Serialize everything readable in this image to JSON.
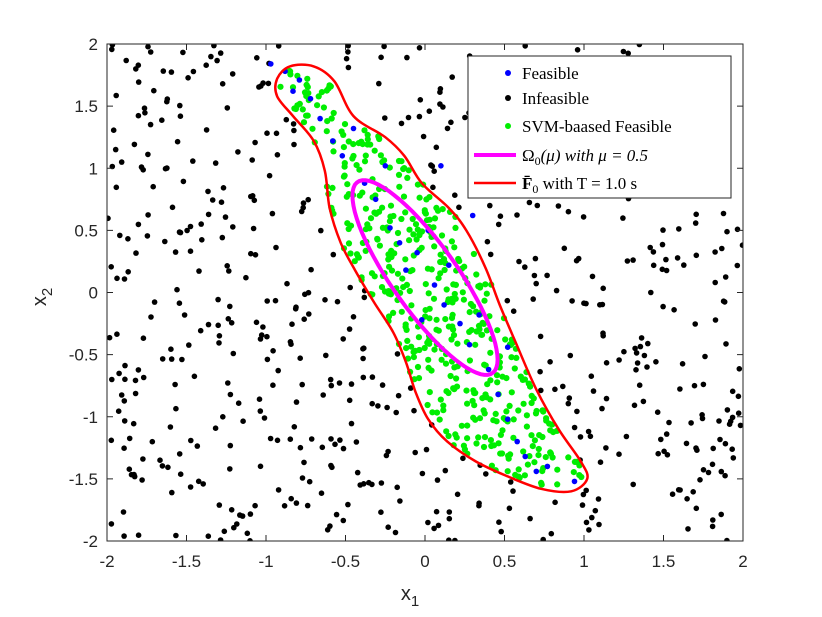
{
  "chart_data": {
    "type": "scatter",
    "title": "",
    "xlabel": "x",
    "xlabel_sub": "1",
    "ylabel": "x",
    "ylabel_sub": "2",
    "xlim": [
      -2,
      2
    ],
    "ylim": [
      -2,
      2
    ],
    "xticks": [
      "-2",
      "-1.5",
      "-1",
      "-0.5",
      "0",
      "0.5",
      "1",
      "1.5",
      "2"
    ],
    "yticks": [
      "-2",
      "-1.5",
      "-1",
      "-0.5",
      "0",
      "0.5",
      "1",
      "1.5",
      "2"
    ],
    "grid": false,
    "legend_position": "top-right",
    "series": [
      {
        "name": "Feasible",
        "kind": "points",
        "color": "#0000ff",
        "points": [
          [
            -0.97,
            1.84
          ],
          [
            -0.88,
            1.78
          ],
          [
            -0.83,
            1.62
          ],
          [
            -0.79,
            1.71
          ],
          [
            -0.72,
            1.56
          ],
          [
            -0.66,
            1.4
          ],
          [
            -0.58,
            1.22
          ],
          [
            -0.52,
            1.1
          ],
          [
            -0.45,
            1.32
          ],
          [
            -0.38,
            0.88
          ],
          [
            -0.31,
            0.75
          ],
          [
            -0.22,
            0.52
          ],
          [
            -0.16,
            0.4
          ],
          [
            -0.12,
            0.18
          ],
          [
            -0.05,
            0.32
          ],
          [
            0.02,
            0.5
          ],
          [
            0.06,
            0.06
          ],
          [
            0.12,
            -0.1
          ],
          [
            0.15,
            0.22
          ],
          [
            0.22,
            -0.25
          ],
          [
            0.28,
            -0.42
          ],
          [
            0.34,
            -0.18
          ],
          [
            0.4,
            -0.62
          ],
          [
            0.46,
            -0.82
          ],
          [
            0.52,
            -1.02
          ],
          [
            0.58,
            -1.2
          ],
          [
            0.63,
            -1.32
          ],
          [
            0.7,
            -1.44
          ],
          [
            0.77,
            -1.4
          ],
          [
            0.94,
            -1.52
          ],
          [
            -0.02,
            -0.22
          ],
          [
            0.3,
            0.62
          ],
          [
            0.1,
            1.02
          ],
          [
            -0.25,
            1.02
          ],
          [
            0.52,
            -0.44
          ]
        ]
      },
      {
        "name": "Infeasible",
        "kind": "points",
        "color": "#000000",
        "random_fill": true,
        "count": 620,
        "seed": 7
      },
      {
        "name": "SVM-baased Feasible",
        "kind": "points",
        "color": "#00ee00",
        "random_fill": true,
        "count": 480,
        "seed": 11
      },
      {
        "name": "Ω0(μ) with μ = 0.5",
        "kind": "ellipse",
        "color": "#ff00ff",
        "center": [
          0.0,
          0.12
        ],
        "semi_axes": [
          0.88,
          0.22
        ],
        "angle_deg": -62
      },
      {
        "name": "F̄0 with T = 1.0 s",
        "kind": "curve",
        "color": "#ff0000",
        "points": [
          [
            -0.93,
            1.72
          ],
          [
            -0.85,
            1.82
          ],
          [
            -0.7,
            1.82
          ],
          [
            -0.57,
            1.7
          ],
          [
            -0.45,
            1.42
          ],
          [
            -0.25,
            1.25
          ],
          [
            -0.13,
            1.1
          ],
          [
            -0.02,
            0.88
          ],
          [
            0.15,
            0.68
          ],
          [
            0.26,
            0.5
          ],
          [
            0.38,
            0.2
          ],
          [
            0.47,
            -0.1
          ],
          [
            0.57,
            -0.4
          ],
          [
            0.7,
            -0.78
          ],
          [
            0.84,
            -1.1
          ],
          [
            0.98,
            -1.36
          ],
          [
            1.02,
            -1.5
          ],
          [
            0.92,
            -1.6
          ],
          [
            0.73,
            -1.58
          ],
          [
            0.52,
            -1.48
          ],
          [
            0.32,
            -1.36
          ],
          [
            0.14,
            -1.2
          ],
          [
            0.02,
            -1.02
          ],
          [
            -0.06,
            -0.8
          ],
          [
            -0.12,
            -0.56
          ],
          [
            -0.2,
            -0.32
          ],
          [
            -0.32,
            -0.08
          ],
          [
            -0.44,
            0.18
          ],
          [
            -0.53,
            0.4
          ],
          [
            -0.6,
            0.68
          ],
          [
            -0.63,
            0.98
          ],
          [
            -0.7,
            1.22
          ],
          [
            -0.83,
            1.42
          ],
          [
            -0.93,
            1.58
          ]
        ]
      }
    ],
    "legend": {
      "feasible": "Feasible",
      "infeasible": "Infeasible",
      "svm": "SVM-baased Feasible",
      "ellipse_omega": "Ω",
      "ellipse_sub": "0",
      "ellipse_rest": "(μ) with μ = 0.5",
      "curve_f": "F̄",
      "curve_sub": "0",
      "curve_rest": " with T = 1.0 s"
    }
  }
}
